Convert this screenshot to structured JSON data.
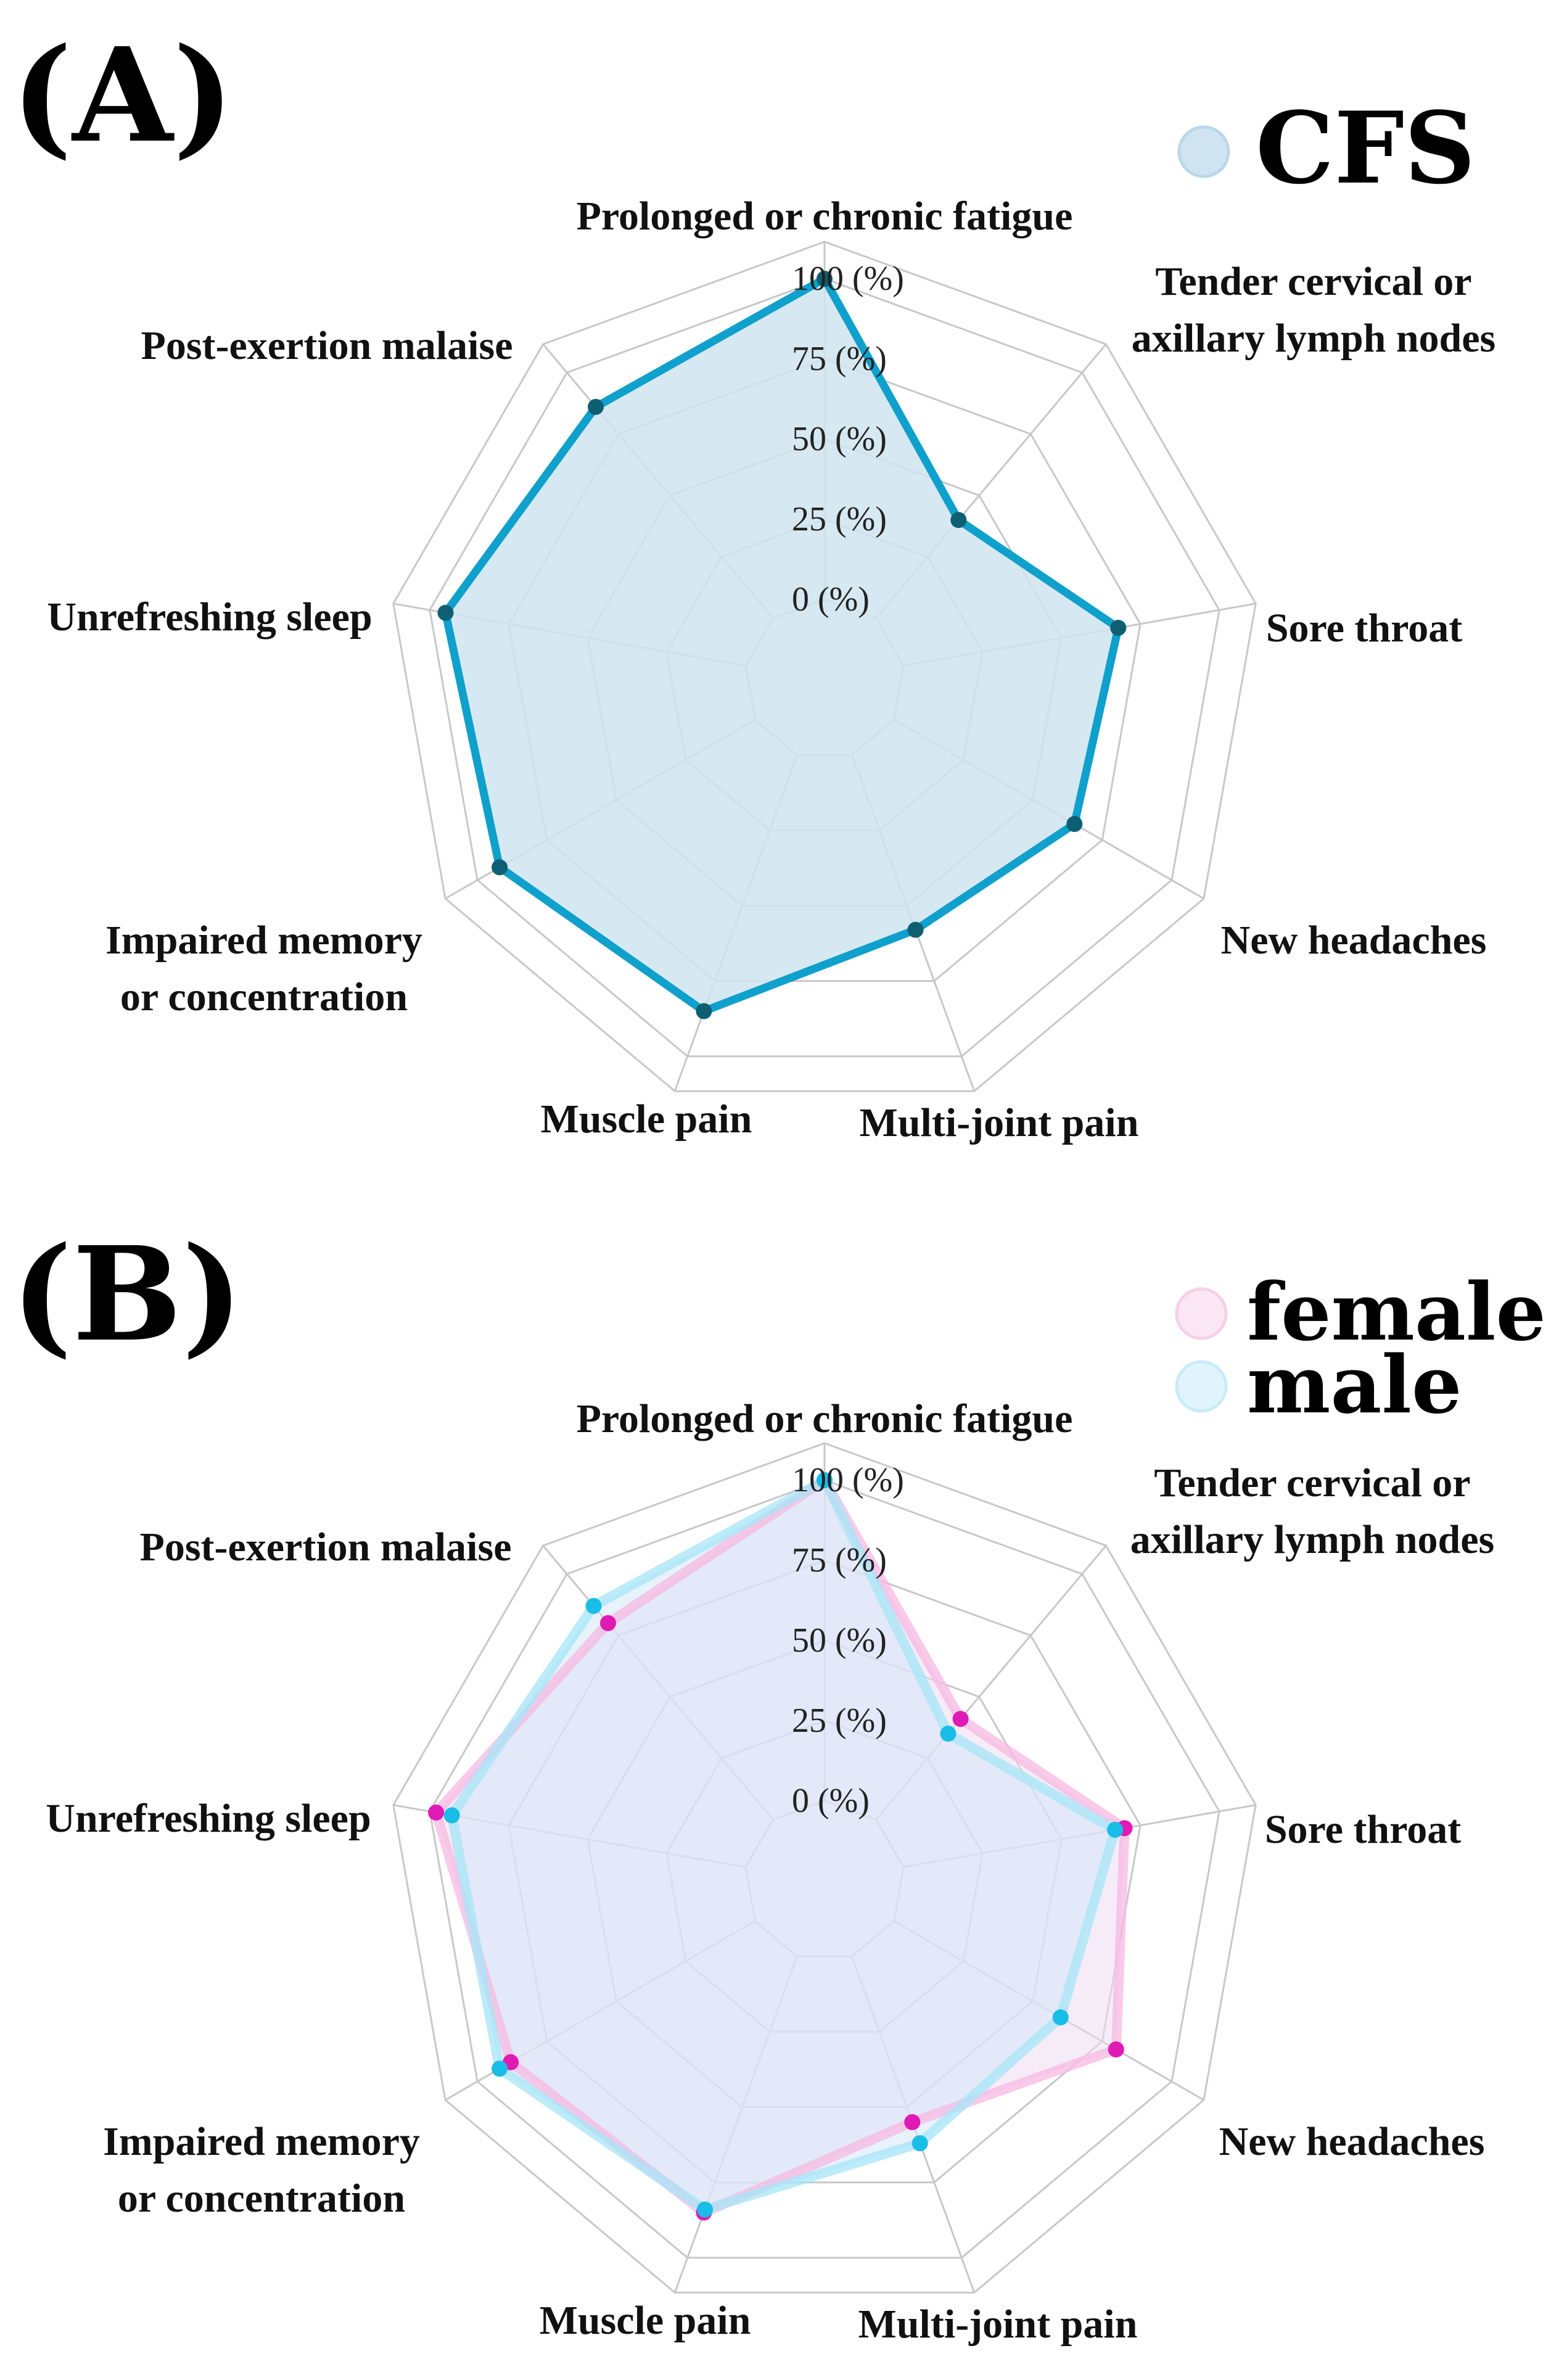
{
  "chart_data": [
    {
      "type": "radar",
      "panel": "(A)",
      "axes": [
        "Prolonged or chronic fatigue",
        "Tender cervical or axillary lymph nodes",
        "Sore throat",
        "New headaches",
        "Multi-joint pain",
        "Muscle pain",
        "Impaired memory or concentration",
        "Unrefreshing sleep",
        "Post-exertion malaise"
      ],
      "axis_label_lines": [
        [
          "Prolonged or chronic fatigue"
        ],
        [
          "Tender cervical or",
          "axillary lymph nodes"
        ],
        [
          "Sore throat"
        ],
        [
          "New headaches"
        ],
        [
          "Multi-joint pain"
        ],
        [
          "Muscle pain"
        ],
        [
          "Impaired memory",
          "or concentration"
        ],
        [
          "Unrefreshing sleep"
        ],
        [
          "Post-exertion malaise"
        ]
      ],
      "radial_ticks": [
        "0 (%)",
        "25 (%)",
        "50 (%)",
        "75 (%)",
        "100 (%)"
      ],
      "rlim": [
        0,
        100
      ],
      "series": [
        {
          "name": "CFS",
          "values": [
            100,
            40,
            68,
            65,
            58,
            85,
            92,
            95,
            86
          ],
          "line_color": "#0fa0cc",
          "fill_color": "#cfe4f0",
          "marker_color": "#0f5f73"
        }
      ]
    },
    {
      "type": "radar",
      "panel": "(B)",
      "axes": [
        "Prolonged or chronic fatigue",
        "Tender cervical or axillary lymph nodes",
        "Sore throat",
        "New headaches",
        "Multi-joint pain",
        "Muscle pain",
        "Impaired memory or concentration",
        "Unrefreshing sleep",
        "Post-exertion malaise"
      ],
      "axis_label_lines": [
        [
          "Prolonged or chronic fatigue"
        ],
        [
          "Tender cervical or",
          "axillary lymph nodes"
        ],
        [
          "Sore throat"
        ],
        [
          "New headaches"
        ],
        [
          "Multi-joint pain"
        ],
        [
          "Muscle pain"
        ],
        [
          "Impaired memory",
          "or concentration"
        ],
        [
          "Unrefreshing sleep"
        ],
        [
          "Post-exertion malaise"
        ]
      ],
      "radial_ticks": [
        "0 (%)",
        "25 (%)",
        "50 (%)",
        "75 (%)",
        "100 (%)"
      ],
      "rlim": [
        0,
        100
      ],
      "series": [
        {
          "name": "female",
          "values": [
            100,
            41,
            70,
            80,
            55,
            85,
            88,
            98,
            80
          ],
          "line_color": "#f7b8e2",
          "fill_color": "#efdcf2",
          "marker_color": "#e01ab5"
        },
        {
          "name": "male",
          "values": [
            100,
            35,
            67,
            60,
            62,
            84,
            92,
            93,
            87
          ],
          "line_color": "#a6e6f7",
          "fill_color": "#d4e8f8",
          "marker_color": "#19bde8"
        }
      ]
    }
  ]
}
